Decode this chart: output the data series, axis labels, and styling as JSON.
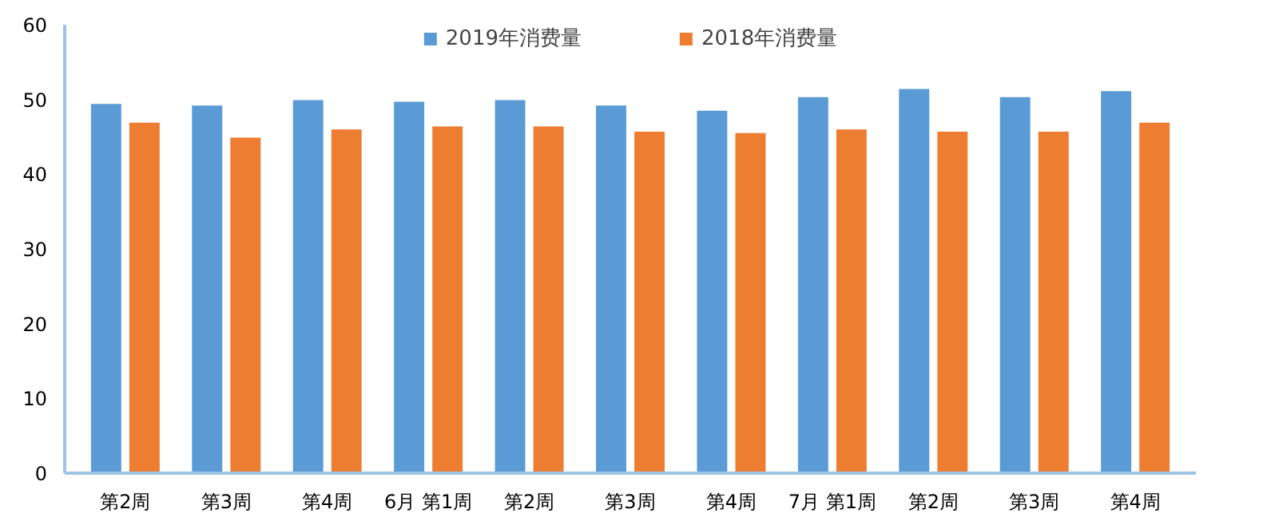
{
  "chart_data": {
    "type": "bar",
    "categories": [
      "第2周",
      "第3周",
      "第4周",
      "6月 第1周",
      "第2周",
      "第3周",
      "第4周",
      "7月 第1周",
      "第2周",
      "第3周",
      "第4周"
    ],
    "series": [
      {
        "name": "2019年消费量",
        "color": "#5b9bd5",
        "values": [
          49.4,
          49.2,
          49.9,
          49.7,
          49.9,
          49.2,
          48.5,
          50.3,
          51.4,
          50.3,
          51.1
        ]
      },
      {
        "name": "2018年消费量",
        "color": "#ed7d31",
        "values": [
          46.9,
          44.9,
          46.0,
          46.4,
          46.4,
          45.7,
          45.5,
          46.0,
          45.7,
          45.7,
          46.9
        ]
      }
    ],
    "ylim": [
      0,
      60
    ],
    "yticks": [
      0,
      10,
      20,
      30,
      40,
      50,
      60
    ],
    "grid": false,
    "legend": "top"
  }
}
